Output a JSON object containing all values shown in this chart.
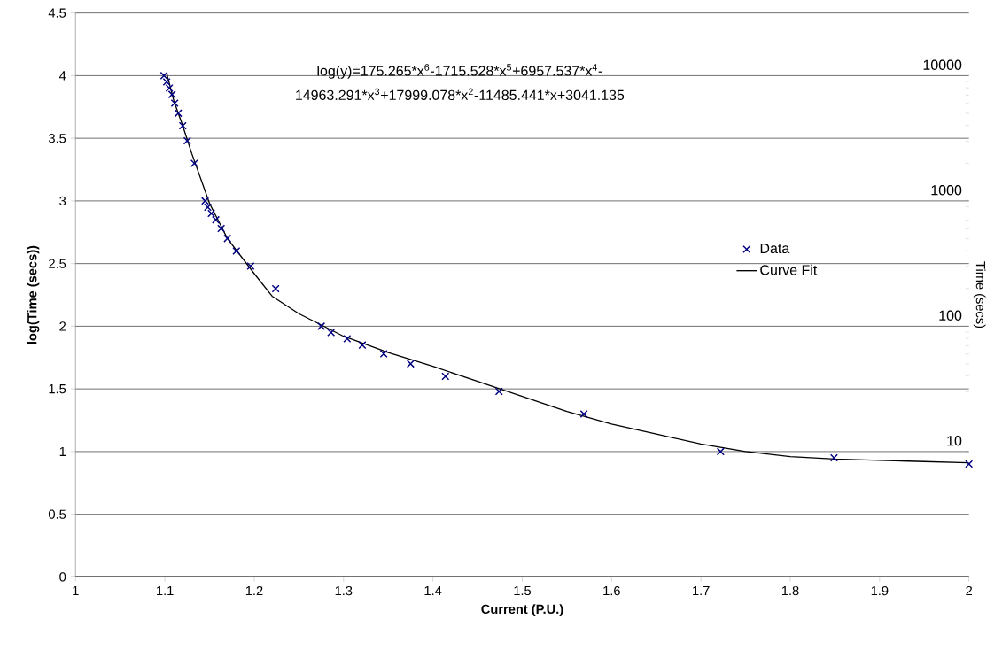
{
  "chart_data": {
    "type": "scatter",
    "xlabel": "Current (P.U.)",
    "ylabel": "log(Time (secs))",
    "y2label": "Time (secs)",
    "xlim": [
      1,
      2
    ],
    "xticks": [
      1,
      1.1,
      1.2,
      1.3,
      1.4,
      1.5,
      1.6,
      1.7,
      1.8,
      1.9,
      2
    ],
    "ylim": [
      0,
      4.5
    ],
    "yticks": [
      0,
      0.5,
      1,
      1.5,
      2,
      2.5,
      3,
      3.5,
      4,
      4.5
    ],
    "y2lim": [
      1,
      31623
    ],
    "y2ticks": [
      10,
      100,
      1000,
      10000
    ],
    "log": "y2",
    "grid": "y",
    "legend": "right",
    "annotations": [
      "log(y)=175.265*x$^{6}$-1715.528*x$^{5}$+6957.537*x$^{4}$-",
      "14963.291*x$^{3}$+17999.078*x$^{2}$-11485.441*x+3041.135"
    ],
    "series": [
      {
        "name": "Data",
        "color": "#000080",
        "marker": "cross",
        "x": [
          1.099,
          1.102,
          1.105,
          1.108,
          1.111,
          1.115,
          1.12,
          1.125,
          1.133,
          1.145,
          1.148,
          1.152,
          1.157,
          1.163,
          1.17,
          1.18,
          1.196,
          1.224,
          1.275,
          1.286,
          1.304,
          1.321,
          1.345,
          1.375,
          1.414,
          1.474,
          1.569,
          1.722,
          1.849,
          2.0
        ],
        "values": [
          4.0,
          3.95,
          3.9,
          3.85,
          3.78,
          3.7,
          3.6,
          3.48,
          3.3,
          3.0,
          2.95,
          2.9,
          2.85,
          2.78,
          2.7,
          2.6,
          2.48,
          2.3,
          2.0,
          1.95,
          1.9,
          1.85,
          1.78,
          1.7,
          1.6,
          1.48,
          1.3,
          1.0,
          0.95,
          0.9
        ]
      },
      {
        "name": "Curve Fit",
        "type": "line",
        "color": "#000000",
        "marker": "none",
        "line_style": "solid",
        "x": [
          1.102,
          1.11,
          1.12,
          1.13,
          1.15,
          1.17,
          1.2,
          1.22,
          1.25,
          1.3,
          1.35,
          1.4,
          1.45,
          1.5,
          1.55,
          1.6,
          1.65,
          1.7,
          1.75,
          1.8,
          1.85,
          1.9,
          1.95,
          2.0
        ],
        "values": [
          4.02,
          3.8,
          3.6,
          3.38,
          2.98,
          2.7,
          2.42,
          2.24,
          2.1,
          1.92,
          1.79,
          1.68,
          1.56,
          1.44,
          1.32,
          1.22,
          1.14,
          1.06,
          1.0,
          0.96,
          0.94,
          0.93,
          0.92,
          0.91
        ]
      }
    ]
  }
}
